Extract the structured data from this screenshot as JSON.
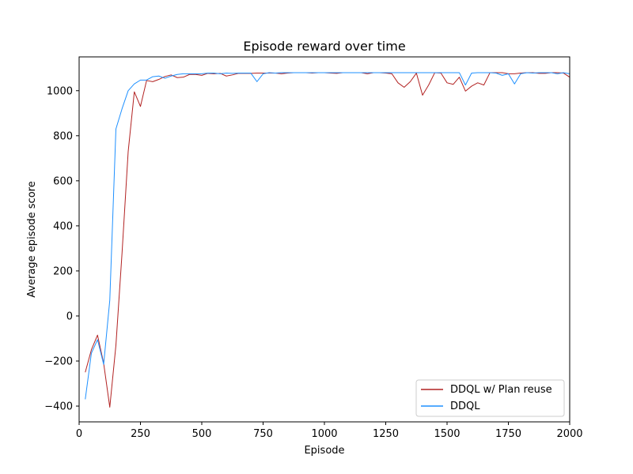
{
  "chart_data": {
    "type": "line",
    "title": "Episode reward over time",
    "xlabel": "Episode",
    "ylabel": "Average episode score",
    "xlim": [
      0,
      2000
    ],
    "ylim": [
      -470,
      1150
    ],
    "xticks": [
      0,
      250,
      500,
      750,
      1000,
      1250,
      1500,
      1750,
      2000
    ],
    "yticks": [
      -400,
      -200,
      0,
      200,
      400,
      600,
      800,
      1000
    ],
    "grid": false,
    "legend_position": "bottom-right",
    "series": [
      {
        "name": "DDQL w/ Plan reuse",
        "color": "#b22222",
        "x": [
          25,
          50,
          75,
          100,
          125,
          150,
          175,
          200,
          225,
          250,
          275,
          300,
          325,
          350,
          375,
          400,
          425,
          450,
          475,
          500,
          525,
          550,
          575,
          600,
          625,
          650,
          675,
          700,
          725,
          750,
          775,
          800,
          825,
          850,
          875,
          900,
          925,
          950,
          975,
          1000,
          1025,
          1050,
          1075,
          1100,
          1125,
          1150,
          1175,
          1200,
          1225,
          1250,
          1275,
          1300,
          1325,
          1350,
          1375,
          1400,
          1425,
          1450,
          1475,
          1500,
          1525,
          1550,
          1575,
          1600,
          1625,
          1650,
          1675,
          1700,
          1725,
          1750,
          1775,
          1800,
          1825,
          1850,
          1875,
          1900,
          1925,
          1950,
          1975,
          2000
        ],
        "y": [
          -250,
          -150,
          -85,
          -210,
          -405,
          -130,
          280,
          730,
          995,
          930,
          1045,
          1040,
          1050,
          1063,
          1070,
          1058,
          1060,
          1072,
          1072,
          1068,
          1077,
          1075,
          1077,
          1065,
          1070,
          1077,
          1077,
          1077,
          1078,
          1078,
          1078,
          1078,
          1075,
          1078,
          1080,
          1080,
          1080,
          1078,
          1080,
          1080,
          1078,
          1077,
          1080,
          1080,
          1080,
          1080,
          1075,
          1080,
          1080,
          1078,
          1075,
          1035,
          1015,
          1040,
          1078,
          980,
          1025,
          1080,
          1078,
          1035,
          1028,
          1060,
          998,
          1020,
          1035,
          1025,
          1080,
          1080,
          1080,
          1075,
          1075,
          1078,
          1080,
          1080,
          1077,
          1077,
          1080,
          1080,
          1078,
          1060
        ]
      },
      {
        "name": "DDQL",
        "color": "#1e90ff",
        "x": [
          25,
          50,
          75,
          100,
          125,
          150,
          175,
          200,
          225,
          250,
          275,
          300,
          325,
          350,
          375,
          400,
          425,
          450,
          475,
          500,
          525,
          550,
          575,
          600,
          625,
          650,
          675,
          700,
          725,
          750,
          775,
          800,
          825,
          850,
          875,
          900,
          925,
          950,
          975,
          1000,
          1025,
          1050,
          1075,
          1100,
          1125,
          1150,
          1175,
          1200,
          1225,
          1250,
          1275,
          1300,
          1325,
          1350,
          1375,
          1400,
          1425,
          1450,
          1475,
          1500,
          1525,
          1550,
          1575,
          1600,
          1625,
          1650,
          1675,
          1700,
          1725,
          1750,
          1775,
          1800,
          1825,
          1850,
          1875,
          1900,
          1925,
          1950,
          1975,
          2000
        ],
        "y": [
          -370,
          -165,
          -105,
          -215,
          70,
          830,
          920,
          1000,
          1030,
          1047,
          1047,
          1062,
          1065,
          1055,
          1065,
          1072,
          1075,
          1075,
          1075,
          1075,
          1078,
          1078,
          1075,
          1078,
          1077,
          1078,
          1078,
          1078,
          1040,
          1075,
          1080,
          1078,
          1080,
          1080,
          1080,
          1080,
          1080,
          1080,
          1080,
          1080,
          1080,
          1080,
          1080,
          1080,
          1080,
          1080,
          1080,
          1080,
          1080,
          1080,
          1080,
          1080,
          1080,
          1080,
          1080,
          1080,
          1080,
          1080,
          1080,
          1080,
          1080,
          1080,
          1025,
          1078,
          1080,
          1080,
          1080,
          1078,
          1068,
          1075,
          1030,
          1075,
          1080,
          1078,
          1080,
          1080,
          1080,
          1075,
          1080,
          1075
        ]
      }
    ]
  }
}
